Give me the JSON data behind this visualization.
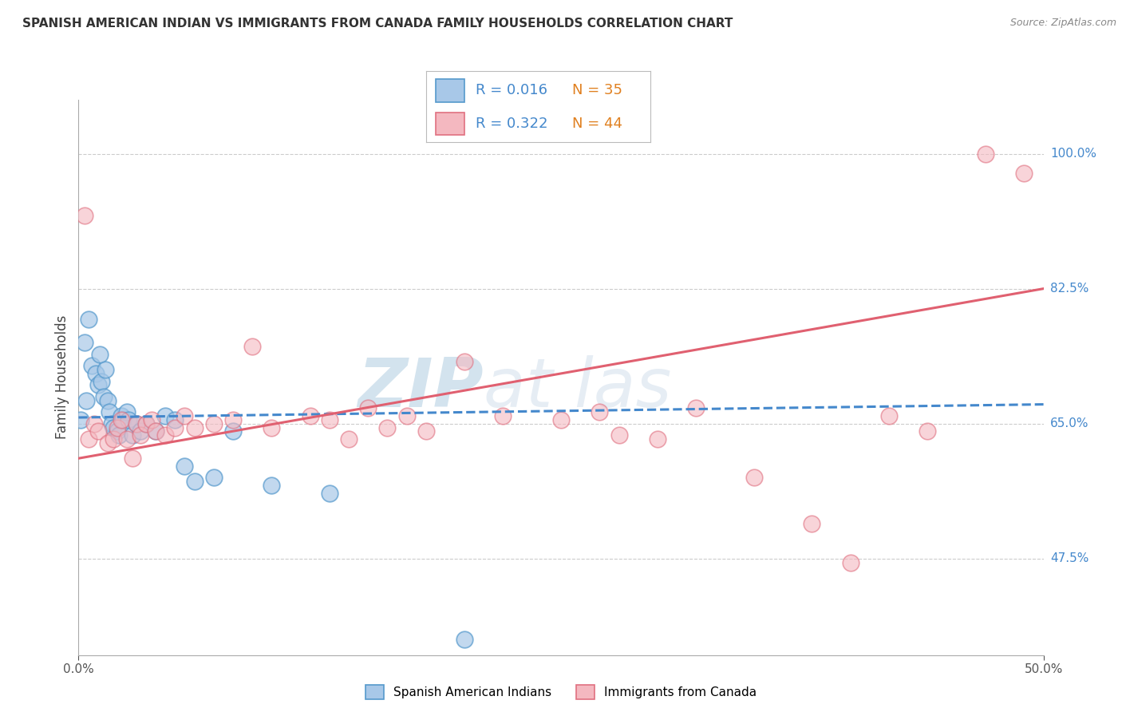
{
  "title": "SPANISH AMERICAN INDIAN VS IMMIGRANTS FROM CANADA FAMILY HOUSEHOLDS CORRELATION CHART",
  "source": "Source: ZipAtlas.com",
  "ylabel": "Family Households",
  "right_yticks": [
    47.5,
    65.0,
    82.5,
    100.0
  ],
  "right_ytick_labels": [
    "47.5%",
    "65.0%",
    "82.5%",
    "100.0%"
  ],
  "legend_blue_R": "R = 0.016",
  "legend_blue_N": "N = 35",
  "legend_pink_R": "R = 0.322",
  "legend_pink_N": "N = 44",
  "legend_label_blue": "Spanish American Indians",
  "legend_label_pink": "Immigrants from Canada",
  "blue_color": "#a8c8e8",
  "blue_edge_color": "#5599cc",
  "pink_color": "#f4b8c0",
  "pink_edge_color": "#e07080",
  "blue_line_color": "#4488cc",
  "pink_line_color": "#e06070",
  "legend_R_color": "#4488cc",
  "legend_N_color": "#e08020",
  "watermark_color": "#d8e8f0",
  "blue_points_x": [
    0.1,
    0.3,
    0.4,
    0.5,
    0.7,
    0.9,
    1.0,
    1.1,
    1.2,
    1.3,
    1.4,
    1.5,
    1.6,
    1.7,
    1.8,
    2.0,
    2.1,
    2.2,
    2.3,
    2.5,
    2.6,
    2.8,
    3.0,
    3.2,
    3.5,
    4.0,
    4.5,
    5.0,
    5.5,
    6.0,
    7.0,
    8.0,
    10.0,
    13.0,
    20.0
  ],
  "blue_points_y": [
    65.5,
    75.5,
    68.0,
    78.5,
    72.5,
    71.5,
    70.0,
    74.0,
    70.5,
    68.5,
    72.0,
    68.0,
    66.5,
    65.0,
    64.5,
    64.0,
    63.5,
    66.0,
    65.5,
    66.5,
    65.5,
    63.5,
    65.0,
    64.0,
    65.0,
    64.0,
    66.0,
    65.5,
    59.5,
    57.5,
    58.0,
    64.0,
    57.0,
    56.0,
    37.0
  ],
  "pink_points_x": [
    0.3,
    0.5,
    0.8,
    1.0,
    1.5,
    1.8,
    2.0,
    2.2,
    2.5,
    2.8,
    3.0,
    3.2,
    3.5,
    3.8,
    4.0,
    4.5,
    5.0,
    5.5,
    6.0,
    7.0,
    8.0,
    9.0,
    10.0,
    12.0,
    13.0,
    14.0,
    15.0,
    16.0,
    17.0,
    18.0,
    20.0,
    22.0,
    25.0,
    27.0,
    28.0,
    30.0,
    32.0,
    35.0,
    38.0,
    40.0,
    42.0,
    44.0,
    47.0,
    49.0
  ],
  "pink_points_y": [
    92.0,
    63.0,
    65.0,
    64.0,
    62.5,
    63.0,
    64.5,
    65.5,
    63.0,
    60.5,
    65.0,
    63.5,
    65.0,
    65.5,
    64.0,
    63.5,
    64.5,
    66.0,
    64.5,
    65.0,
    65.5,
    75.0,
    64.5,
    66.0,
    65.5,
    63.0,
    67.0,
    64.5,
    66.0,
    64.0,
    73.0,
    66.0,
    65.5,
    66.5,
    63.5,
    63.0,
    67.0,
    58.0,
    52.0,
    47.0,
    66.0,
    64.0,
    100.0,
    97.5
  ],
  "blue_line_x0": 0.0,
  "blue_line_x1": 50.0,
  "blue_line_y0": 65.8,
  "blue_line_y1": 67.5,
  "pink_line_x0": 0.0,
  "pink_line_x1": 50.0,
  "pink_line_y0": 60.5,
  "pink_line_y1": 82.5,
  "xlim": [
    0.0,
    50.0
  ],
  "ylim": [
    35.0,
    107.0
  ],
  "ygrid_lines": [
    47.5,
    65.0,
    82.5,
    100.0
  ]
}
